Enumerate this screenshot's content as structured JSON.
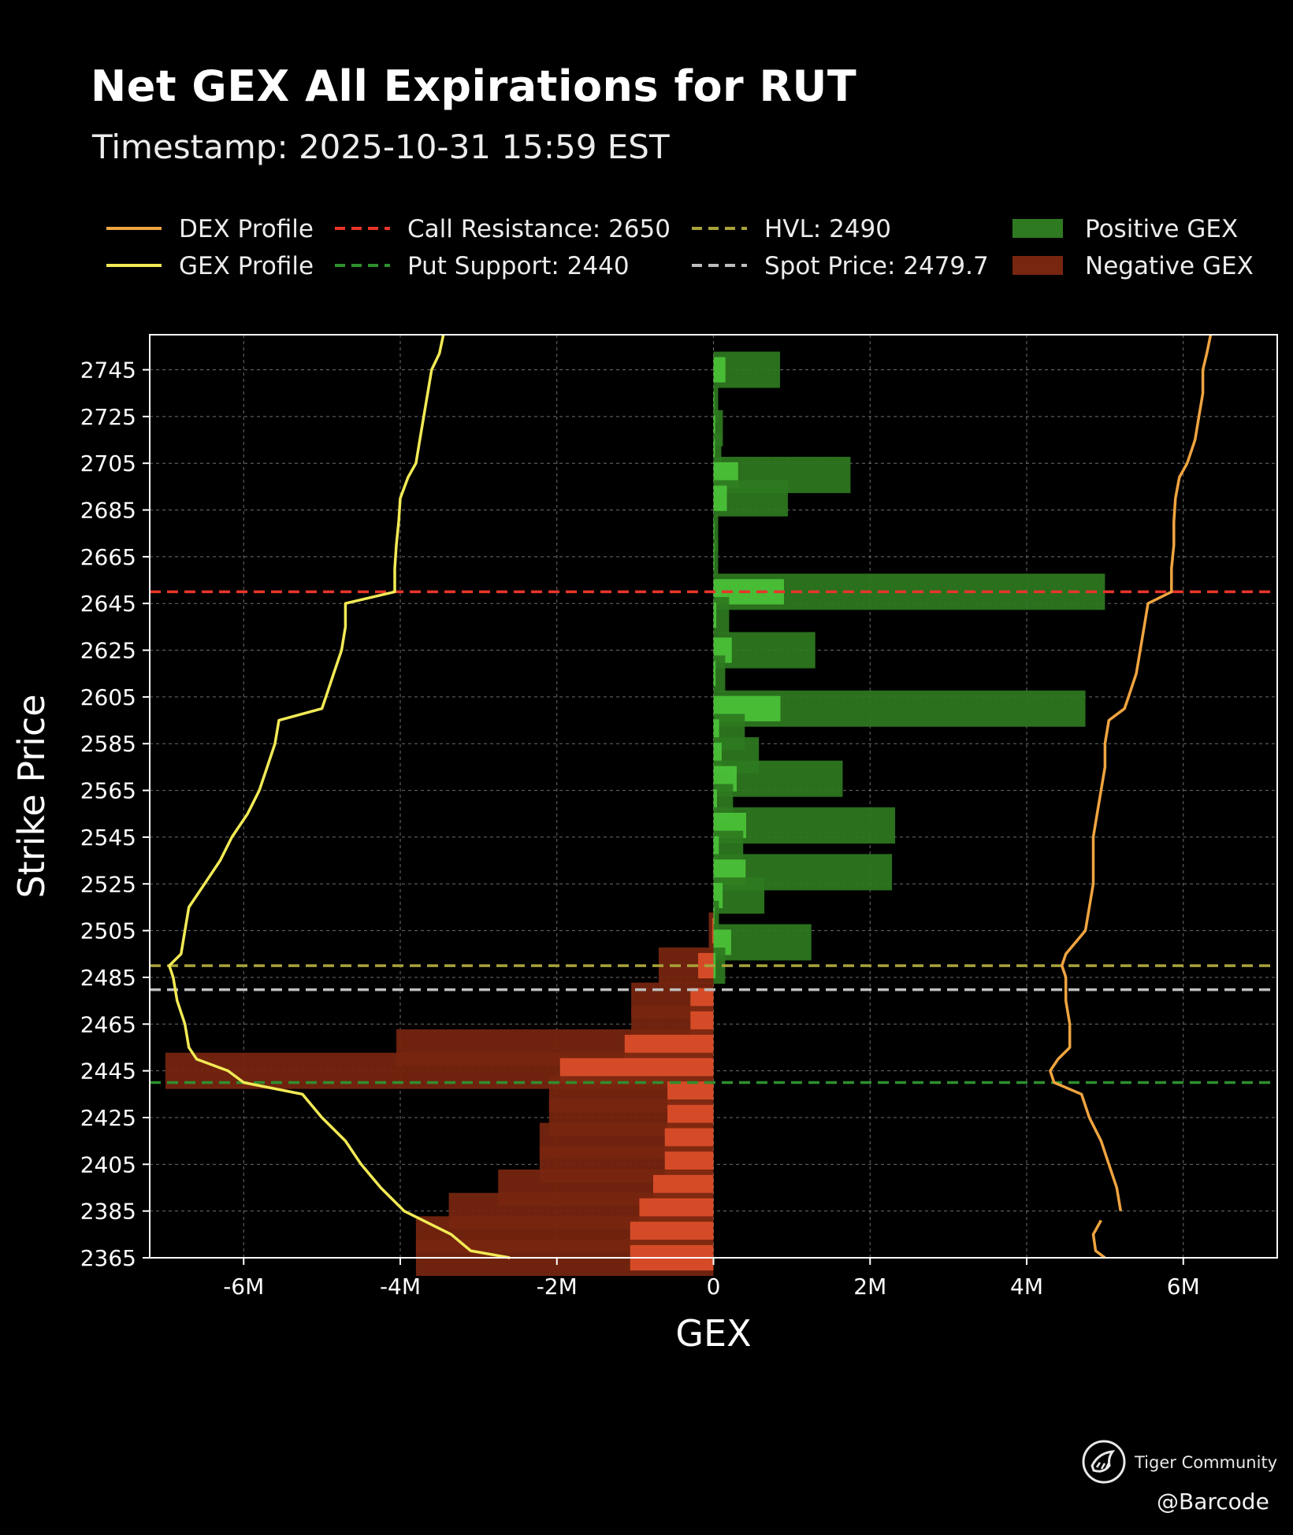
{
  "header": {
    "title": "Net GEX All Expirations for RUT",
    "subtitle": "Timestamp: 2025-10-31 15:59 EST"
  },
  "footer": {
    "brand": "Tiger Community",
    "credit": "@Barcode"
  },
  "colors": {
    "background": "#000000",
    "positive_bar": "#2e7a20",
    "positive_bar_inner": "#4cc43a",
    "negative_bar": "#78260f",
    "negative_bar_inner": "#e0502a",
    "gex_profile": "#f2ea55",
    "dex_profile": "#f0a440",
    "call_resistance": "#e8352a",
    "put_support": "#2f8f2f",
    "hvl": "#a8a23a",
    "spot": "#bdbdbd"
  },
  "chart_data": {
    "type": "bar",
    "orientation": "horizontal",
    "xlabel": "GEX",
    "ylabel": "Strike Price",
    "xlim": [
      -7200000,
      7200000
    ],
    "ylim": [
      2365,
      2760
    ],
    "grid": true,
    "legend_position": "top",
    "x_ticks": [
      {
        "value": -6000000,
        "label": "-6M"
      },
      {
        "value": -4000000,
        "label": "-4M"
      },
      {
        "value": -2000000,
        "label": "-2M"
      },
      {
        "value": 0,
        "label": "0"
      },
      {
        "value": 2000000,
        "label": "2M"
      },
      {
        "value": 4000000,
        "label": "4M"
      },
      {
        "value": 6000000,
        "label": "6M"
      }
    ],
    "y_ticks": [
      2745,
      2725,
      2705,
      2685,
      2665,
      2645,
      2625,
      2605,
      2585,
      2565,
      2545,
      2525,
      2505,
      2485,
      2465,
      2445,
      2425,
      2405,
      2385,
      2365
    ],
    "legend": [
      {
        "label": "DEX Profile",
        "kind": "line",
        "color": "#f0a440"
      },
      {
        "label": "GEX Profile",
        "kind": "line",
        "color": "#f2ea55"
      },
      {
        "label": "Call Resistance: 2650",
        "kind": "dash",
        "color": "#e8352a"
      },
      {
        "label": "Put Support: 2440",
        "kind": "dash",
        "color": "#2f8f2f"
      },
      {
        "label": "HVL: 2490",
        "kind": "dash",
        "color": "#a8a23a"
      },
      {
        "label": "Spot Price: 2479.7",
        "kind": "dash",
        "color": "#bdbdbd"
      },
      {
        "label": "Positive GEX",
        "kind": "patch",
        "color": "#2e7a20"
      },
      {
        "label": "Negative GEX",
        "kind": "patch",
        "color": "#78260f"
      }
    ],
    "reference_lines": [
      {
        "name": "Call Resistance",
        "value": 2650,
        "color": "#e8352a"
      },
      {
        "name": "HVL",
        "value": 2490,
        "color": "#a8a23a"
      },
      {
        "name": "Spot Price",
        "value": 2479.7,
        "color": "#bdbdbd"
      },
      {
        "name": "Put Support",
        "value": 2440,
        "color": "#2f8f2f"
      }
    ],
    "series": [
      {
        "name": "Positive GEX",
        "bars": [
          {
            "strike": 2745,
            "value": 850000
          },
          {
            "strike": 2730,
            "value": 60000
          },
          {
            "strike": 2720,
            "value": 120000
          },
          {
            "strike": 2710,
            "value": 100000
          },
          {
            "strike": 2700,
            "value": 1750000
          },
          {
            "strike": 2690,
            "value": 950000
          },
          {
            "strike": 2675,
            "value": 60000
          },
          {
            "strike": 2665,
            "value": 60000
          },
          {
            "strike": 2650,
            "value": 5000000
          },
          {
            "strike": 2640,
            "value": 200000
          },
          {
            "strike": 2625,
            "value": 1300000
          },
          {
            "strike": 2615,
            "value": 150000
          },
          {
            "strike": 2600,
            "value": 4750000
          },
          {
            "strike": 2590,
            "value": 400000
          },
          {
            "strike": 2580,
            "value": 580000
          },
          {
            "strike": 2570,
            "value": 1650000
          },
          {
            "strike": 2560,
            "value": 250000
          },
          {
            "strike": 2550,
            "value": 2320000
          },
          {
            "strike": 2540,
            "value": 380000
          },
          {
            "strike": 2530,
            "value": 2280000
          },
          {
            "strike": 2520,
            "value": 650000
          },
          {
            "strike": 2510,
            "value": 70000
          },
          {
            "strike": 2500,
            "value": 1250000
          },
          {
            "strike": 2490,
            "value": 150000
          }
        ]
      },
      {
        "name": "Negative GEX",
        "bars": [
          {
            "strike": 2505,
            "value": -60000
          },
          {
            "strike": 2490,
            "value": -700000
          },
          {
            "strike": 2475,
            "value": -1050000
          },
          {
            "strike": 2465,
            "value": -1050000
          },
          {
            "strike": 2455,
            "value": -4050000
          },
          {
            "strike": 2445,
            "value": -7000000
          },
          {
            "strike": 2435,
            "value": -2100000
          },
          {
            "strike": 2425,
            "value": -2100000
          },
          {
            "strike": 2415,
            "value": -2220000
          },
          {
            "strike": 2405,
            "value": -2220000
          },
          {
            "strike": 2395,
            "value": -2750000
          },
          {
            "strike": 2385,
            "value": -3380000
          },
          {
            "strike": 2375,
            "value": -3800000
          },
          {
            "strike": 2365,
            "value": -3800000
          }
        ]
      },
      {
        "name": "GEX Profile",
        "points": [
          [
            2760,
            -3450000
          ],
          [
            2752,
            -3500000
          ],
          [
            2745,
            -3600000
          ],
          [
            2735,
            -3650000
          ],
          [
            2725,
            -3700000
          ],
          [
            2715,
            -3750000
          ],
          [
            2705,
            -3800000
          ],
          [
            2699,
            -3900000
          ],
          [
            2690,
            -4000000
          ],
          [
            2680,
            -4020000
          ],
          [
            2670,
            -4050000
          ],
          [
            2660,
            -4070000
          ],
          [
            2650,
            -4070000
          ],
          [
            2645,
            -4700000
          ],
          [
            2635,
            -4700000
          ],
          [
            2625,
            -4750000
          ],
          [
            2615,
            -4850000
          ],
          [
            2605,
            -4950000
          ],
          [
            2600,
            -5000000
          ],
          [
            2595,
            -5550000
          ],
          [
            2585,
            -5600000
          ],
          [
            2575,
            -5700000
          ],
          [
            2565,
            -5800000
          ],
          [
            2555,
            -5950000
          ],
          [
            2545,
            -6150000
          ],
          [
            2535,
            -6300000
          ],
          [
            2525,
            -6500000
          ],
          [
            2515,
            -6700000
          ],
          [
            2505,
            -6750000
          ],
          [
            2495,
            -6800000
          ],
          [
            2490,
            -6950000
          ],
          [
            2485,
            -6900000
          ],
          [
            2475,
            -6850000
          ],
          [
            2465,
            -6750000
          ],
          [
            2455,
            -6700000
          ],
          [
            2450,
            -6600000
          ],
          [
            2445,
            -6200000
          ],
          [
            2440,
            -6000000
          ],
          [
            2435,
            -5250000
          ],
          [
            2425,
            -5000000
          ],
          [
            2415,
            -4700000
          ],
          [
            2405,
            -4500000
          ],
          [
            2395,
            -4250000
          ],
          [
            2385,
            -3950000
          ],
          [
            2375,
            -3350000
          ],
          [
            2368,
            -3100000
          ],
          [
            2365,
            -2600000
          ]
        ]
      },
      {
        "name": "DEX Profile",
        "points": [
          [
            2760,
            6350000
          ],
          [
            2752,
            6300000
          ],
          [
            2745,
            6250000
          ],
          [
            2735,
            6250000
          ],
          [
            2725,
            6200000
          ],
          [
            2715,
            6150000
          ],
          [
            2705,
            6050000
          ],
          [
            2699,
            5950000
          ],
          [
            2690,
            5900000
          ],
          [
            2680,
            5880000
          ],
          [
            2670,
            5880000
          ],
          [
            2660,
            5850000
          ],
          [
            2650,
            5850000
          ],
          [
            2645,
            5550000
          ],
          [
            2635,
            5500000
          ],
          [
            2625,
            5450000
          ],
          [
            2615,
            5400000
          ],
          [
            2605,
            5300000
          ],
          [
            2600,
            5250000
          ],
          [
            2595,
            5050000
          ],
          [
            2585,
            5000000
          ],
          [
            2575,
            5000000
          ],
          [
            2565,
            4950000
          ],
          [
            2555,
            4900000
          ],
          [
            2545,
            4850000
          ],
          [
            2535,
            4850000
          ],
          [
            2525,
            4850000
          ],
          [
            2515,
            4800000
          ],
          [
            2505,
            4750000
          ],
          [
            2495,
            4500000
          ],
          [
            2490,
            4450000
          ],
          [
            2485,
            4500000
          ],
          [
            2475,
            4500000
          ],
          [
            2465,
            4550000
          ],
          [
            2455,
            4550000
          ],
          [
            2450,
            4400000
          ],
          [
            2445,
            4300000
          ],
          [
            2440,
            4350000
          ],
          [
            2435,
            4700000
          ],
          [
            2425,
            4800000
          ],
          [
            2415,
            4950000
          ],
          [
            2405,
            5050000
          ],
          [
            2395,
            5150000
          ],
          [
            2385,
            5200000
          ]
        ]
      },
      {
        "name": "DEX Profile (lower segment)",
        "points": [
          [
            2381,
            4950000
          ],
          [
            2375,
            4850000
          ],
          [
            2368,
            4880000
          ],
          [
            2365,
            5000000
          ]
        ]
      }
    ]
  }
}
